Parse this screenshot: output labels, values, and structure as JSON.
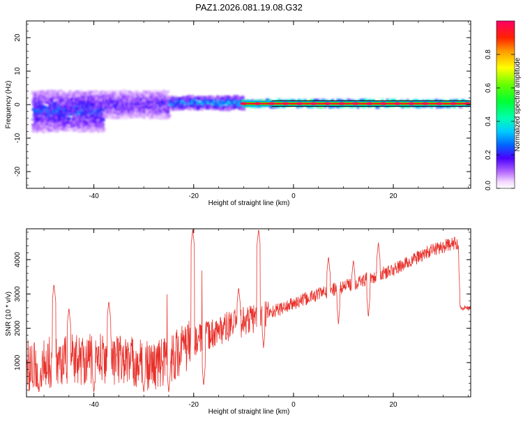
{
  "figure_title": "PAZ1.2026.081.19.08.G32",
  "chart_data": [
    {
      "type": "heatmap",
      "title": "PAZ1.2026.081.19.08.G32",
      "xlabel": "Height of straight line (km)",
      "ylabel": "Frequency (Hz)",
      "xlim": [
        -53.5,
        35.5
      ],
      "ylim": [
        -25,
        25
      ],
      "x_ticks": [
        -40,
        -20,
        0,
        20
      ],
      "x_tick_labels": [
        "-40",
        "-20",
        "0",
        "20"
      ],
      "y_ticks": [
        -20,
        -10,
        0,
        10,
        20
      ],
      "y_tick_labels": [
        "-20",
        "-10",
        "0",
        "10",
        "20"
      ],
      "colorbar": {
        "label": "Normalized spectral amplitude",
        "range": [
          0,
          1
        ],
        "ticks": [
          0.0,
          0.2,
          0.4,
          0.6,
          0.8
        ],
        "tick_labels": [
          "0.0",
          "0.2",
          "0.4",
          "0.6",
          "0.8"
        ]
      },
      "features": [
        {
          "x_start": -52,
          "x_end": -38,
          "freq_center": -2,
          "freq_spread": 6,
          "amplitude": 0.25
        },
        {
          "x_start": -38,
          "x_end": -25,
          "freq_center": 0,
          "freq_spread": 4,
          "amplitude": 0.2
        },
        {
          "x_start": -25,
          "x_end": -10,
          "freq_center": 0.5,
          "freq_spread": 2,
          "amplitude": 0.35
        },
        {
          "x_start": -10,
          "x_end": 35,
          "freq_center": 0.3,
          "freq_spread": 1,
          "amplitude": 0.95
        }
      ]
    },
    {
      "type": "line",
      "xlabel": "Height of straight line (km)",
      "ylabel": "SNR (10 * v/v)",
      "xlim": [
        -53.5,
        35.5
      ],
      "ylim": [
        0,
        4900
      ],
      "x_ticks": [
        -40,
        -20,
        0,
        20
      ],
      "x_tick_labels": [
        "-40",
        "-20",
        "0",
        "20"
      ],
      "y_ticks": [
        1000,
        2000,
        3000,
        4000
      ],
      "y_tick_labels": [
        "1000",
        "2000",
        "3000",
        "4000"
      ],
      "color": "#e8302a",
      "trend_points": [
        {
          "x": -53.5,
          "y": 900
        },
        {
          "x": -45,
          "y": 1100
        },
        {
          "x": -35,
          "y": 1100
        },
        {
          "x": -28,
          "y": 900
        },
        {
          "x": -25,
          "y": 1100
        },
        {
          "x": -20,
          "y": 1600
        },
        {
          "x": -14,
          "y": 2000
        },
        {
          "x": -8,
          "y": 2300
        },
        {
          "x": -2,
          "y": 2600
        },
        {
          "x": 5,
          "y": 3000
        },
        {
          "x": 12,
          "y": 3300
        },
        {
          "x": 20,
          "y": 3700
        },
        {
          "x": 28,
          "y": 4300
        },
        {
          "x": 33,
          "y": 4500
        },
        {
          "x": 33.4,
          "y": 2600
        },
        {
          "x": 35.5,
          "y": 2600
        }
      ],
      "spikes": [
        {
          "x": -48,
          "y": 3300
        },
        {
          "x": -45,
          "y": 2600
        },
        {
          "x": -37,
          "y": 2800
        },
        {
          "x": -25,
          "y": 3500
        },
        {
          "x": -20.2,
          "y": 4900
        },
        {
          "x": -18,
          "y": 4200
        },
        {
          "x": -11,
          "y": 3200
        },
        {
          "x": -7,
          "y": 4900
        },
        {
          "x": 7,
          "y": 4100
        },
        {
          "x": 12,
          "y": 4000
        },
        {
          "x": 17,
          "y": 4500
        }
      ],
      "dips": [
        {
          "x": -51,
          "y": 100
        },
        {
          "x": -40,
          "y": 100
        },
        {
          "x": -30,
          "y": 100
        },
        {
          "x": -25,
          "y": 100
        },
        {
          "x": -18,
          "y": 300
        },
        {
          "x": -6,
          "y": 1400
        },
        {
          "x": 9,
          "y": 2100
        },
        {
          "x": 15,
          "y": 2300
        }
      ]
    }
  ]
}
